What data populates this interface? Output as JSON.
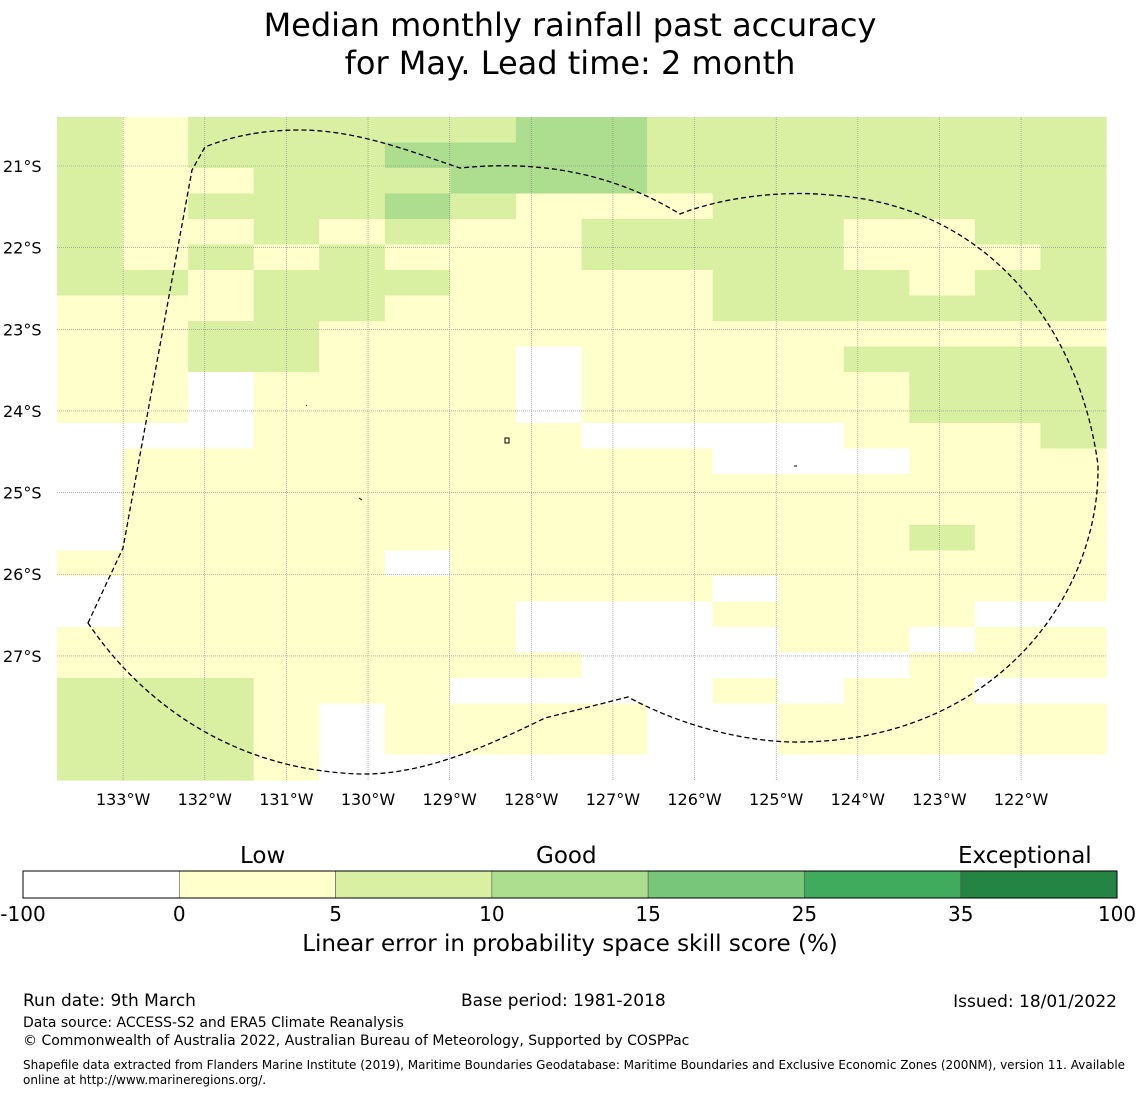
{
  "title": {
    "line1": "Median monthly rainfall past accuracy",
    "line2": "for May. Lead time: 2 month"
  },
  "chart_data": {
    "type": "heatmap",
    "title": "Median monthly rainfall past accuracy for May. Lead time: 2 month",
    "lon_range": [
      -133.81,
      -120.96
    ],
    "lat_range": [
      -28.52,
      -20.4
    ],
    "lat_ticks": [
      {
        "value": -21,
        "label": "21°S"
      },
      {
        "value": -22,
        "label": "22°S"
      },
      {
        "value": -23,
        "label": "23°S"
      },
      {
        "value": -24,
        "label": "24°S"
      },
      {
        "value": -25,
        "label": "25°S"
      },
      {
        "value": -26,
        "label": "26°S"
      },
      {
        "value": -27,
        "label": "27°S"
      }
    ],
    "lon_ticks": [
      {
        "value": -133,
        "label": "133°W"
      },
      {
        "value": -132,
        "label": "132°W"
      },
      {
        "value": -131,
        "label": "131°W"
      },
      {
        "value": -130,
        "label": "130°W"
      },
      {
        "value": -129,
        "label": "129°W"
      },
      {
        "value": -128,
        "label": "128°W"
      },
      {
        "value": -127,
        "label": "127°W"
      },
      {
        "value": -126,
        "label": "126°W"
      },
      {
        "value": -125,
        "label": "125°W"
      },
      {
        "value": -124,
        "label": "124°W"
      },
      {
        "value": -123,
        "label": "123°W"
      },
      {
        "value": -122,
        "label": "122°W"
      }
    ],
    "cell_size_deg": 0.8333,
    "grid_origin": {
      "lon_west": -133.81,
      "lat_top": -20.4
    },
    "grid_rows_note": "Category index per cell: 0 = -100..0 (white), 1 = 0..5, 2 = 5..10, 3 = 10..15. Rows north to south, columns west to east.",
    "grid": [
      "2122222332222222",
      "2122233332222222",
      "2112223332222222",
      "2122232111222222",
      "2112121122221122",
      "2121211122221112",
      "2212221111222122",
      "1112211111222222",
      "1122111111111111",
      "1122111011112222",
      "1101111011111222",
      "1101111011111222",
      "0001111100001112",
      "0111111111000111",
      "0111111111111111",
      "0111111111111111",
      "0111111111111211",
      "1111101111111111",
      "0111111111011111",
      "0111111000111100",
      "1111111000011011",
      "1111111100000111",
      "2221110000101100",
      "2221011110011111",
      "2221011110011111",
      "2221000000000000"
    ],
    "grid_row_height_deg": 0.3125,
    "colormap": {
      "boundaries": [
        "-100",
        "0",
        "5",
        "10",
        "15",
        "25",
        "35",
        "100"
      ],
      "colors": [
        "#ffffff",
        "#ffffcc",
        "#d9f0a3",
        "#addd8e",
        "#78c679",
        "#41ab5d",
        "#238443"
      ],
      "categories": [
        {
          "label": "Low",
          "at": "0..5"
        },
        {
          "label": "Good",
          "at": "10..15"
        },
        {
          "label": "Exceptional",
          "at": "35..100"
        }
      ]
    },
    "xlabel": "",
    "ylabel": ""
  },
  "colorbar": {
    "low_label": "Low",
    "good_label": "Good",
    "exceptional_label": "Exceptional",
    "axis_label": "Linear error in probability space skill score (%)"
  },
  "footer": {
    "run_date": "Run date: 9th March",
    "base_period": "Base period: 1981-2018",
    "issued": "Issued: 18/01/2022",
    "data_source": "Data source: ACCESS-S2 and ERA5 Climate Reanalysis",
    "copyright": "© Commonwealth of Australia 2022, Australian Bureau of Meteorology, Supported by COSPPac",
    "shapefile_line1": "Shapefile data extracted from Flanders Marine Institute (2019), Maritime Boundaries Geodatabase: Maritime Boundaries and Exclusive Economic Zones (200NM), version 11. Available",
    "shapefile_line2": "online at http://www.marineregions.org/."
  }
}
